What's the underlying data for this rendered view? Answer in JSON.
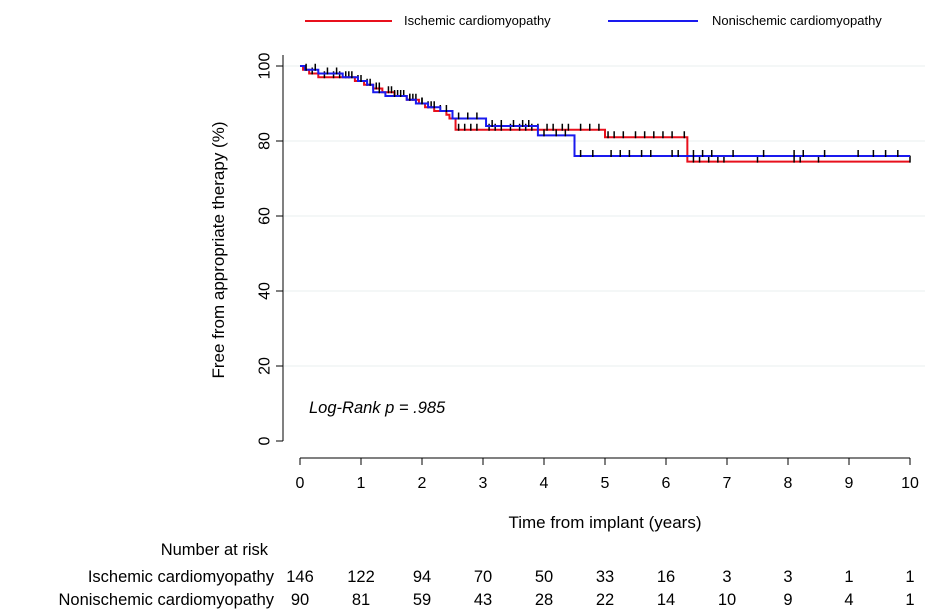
{
  "chart_data": {
    "type": "line",
    "xlabel": "Time from implant (years)",
    "ylabel": "Free from appropriate therapy (%)",
    "xlim": [
      0,
      10
    ],
    "ylim": [
      0,
      100
    ],
    "x_ticks": [
      0,
      1,
      2,
      3,
      4,
      5,
      6,
      7,
      8,
      9,
      10
    ],
    "y_ticks": [
      0,
      20,
      40,
      60,
      80,
      100
    ],
    "grid": "horizontal",
    "legend_position": "top",
    "annotation": "Log-Rank p = .985",
    "series": [
      {
        "name": "Ischemic cardiomyopathy",
        "color": "#e8101c",
        "steps": [
          [
            0,
            100
          ],
          [
            0.05,
            99
          ],
          [
            0.15,
            98
          ],
          [
            0.3,
            97
          ],
          [
            0.9,
            96
          ],
          [
            1.05,
            95
          ],
          [
            1.2,
            94
          ],
          [
            1.35,
            93
          ],
          [
            1.55,
            92
          ],
          [
            1.75,
            91
          ],
          [
            1.95,
            90
          ],
          [
            2.05,
            89
          ],
          [
            2.2,
            88
          ],
          [
            2.4,
            87
          ],
          [
            2.45,
            86
          ],
          [
            2.55,
            83
          ],
          [
            3.0,
            83
          ],
          [
            5.0,
            81
          ],
          [
            6.35,
            74.5
          ],
          [
            10,
            74.5
          ]
        ],
        "censor_x": [
          0.2,
          0.4,
          0.55,
          0.65,
          0.75,
          0.8,
          0.95,
          1.1,
          1.25,
          1.3,
          1.45,
          1.5,
          1.6,
          1.7,
          1.8,
          1.85,
          1.9,
          2.0,
          2.1,
          2.15,
          2.3,
          2.6,
          2.7,
          2.8,
          2.9,
          3.1,
          3.2,
          3.3,
          3.45,
          3.6,
          3.7,
          3.8,
          3.9,
          4.05,
          4.15,
          4.3,
          4.4,
          4.6,
          4.75,
          4.9,
          5.05,
          5.15,
          5.3,
          5.5,
          5.65,
          5.8,
          5.95,
          6.1,
          6.3,
          6.45,
          6.55,
          6.7,
          6.85,
          6.95,
          7.5,
          8.1,
          8.2,
          8.5,
          10.0
        ]
      },
      {
        "name": "Nonischemic cardiomyopathy",
        "color": "#1a1aee",
        "steps": [
          [
            0,
            100
          ],
          [
            0.08,
            99
          ],
          [
            0.3,
            98
          ],
          [
            0.7,
            97
          ],
          [
            0.95,
            96
          ],
          [
            1.1,
            95
          ],
          [
            1.2,
            93
          ],
          [
            1.4,
            92
          ],
          [
            1.75,
            91
          ],
          [
            1.9,
            90
          ],
          [
            2.1,
            89
          ],
          [
            2.3,
            88
          ],
          [
            2.5,
            86
          ],
          [
            3.0,
            86
          ],
          [
            3.05,
            84
          ],
          [
            3.8,
            84
          ],
          [
            3.9,
            81.5
          ],
          [
            4.45,
            81.5
          ],
          [
            4.5,
            76
          ],
          [
            10,
            76
          ]
        ],
        "censor_x": [
          0.1,
          0.25,
          0.45,
          0.6,
          0.85,
          1.0,
          1.15,
          1.3,
          1.55,
          1.65,
          1.8,
          2.0,
          2.2,
          2.4,
          2.6,
          2.75,
          2.9,
          3.15,
          3.3,
          3.5,
          3.65,
          3.75,
          4.0,
          4.2,
          4.35,
          4.6,
          4.8,
          5.1,
          5.25,
          5.4,
          5.6,
          5.75,
          6.1,
          6.2,
          6.45,
          6.6,
          6.75,
          7.1,
          7.6,
          8.1,
          8.25,
          8.6,
          9.15,
          9.4,
          9.6,
          9.8
        ]
      }
    ],
    "risk_table": {
      "header": "Number at risk",
      "rows": [
        {
          "label": "Ischemic cardiomyopathy",
          "values": [
            "146",
            "122",
            "94",
            "70",
            "50",
            "33",
            "16",
            "3",
            "3",
            "1",
            "1"
          ]
        },
        {
          "label": "Nonischemic cardiomyopathy",
          "values": [
            "90",
            "81",
            "59",
            "43",
            "28",
            "22",
            "14",
            "10",
            "9",
            "4",
            "1"
          ]
        }
      ]
    }
  }
}
